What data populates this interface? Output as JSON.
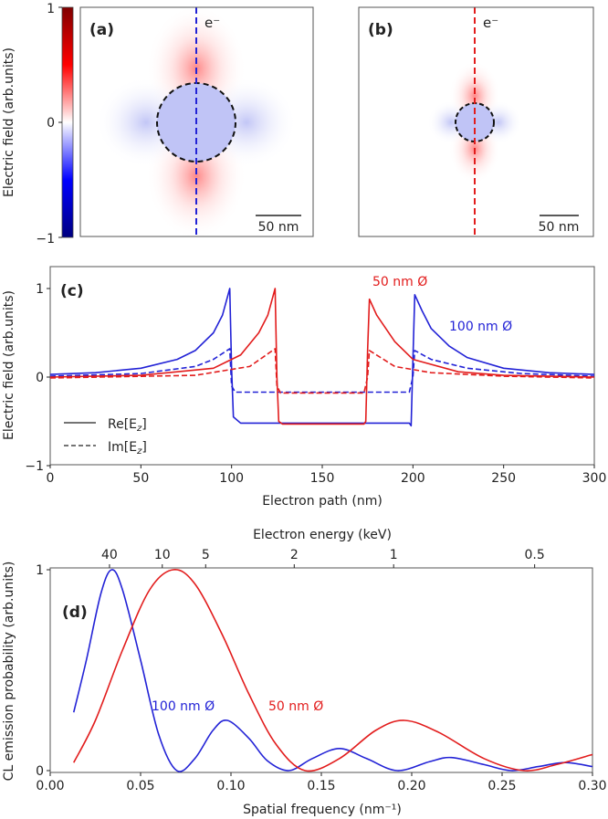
{
  "colors": {
    "blue": "#2222d6",
    "red": "#e21c1c"
  },
  "colorbar": {
    "label": "Electric field (arb.units)",
    "ticks": [
      "1",
      "0",
      "−1"
    ],
    "range": [
      -1,
      1
    ]
  },
  "panel_a": {
    "label": "(a)",
    "electron": "e⁻",
    "scale_bar": "50 nm",
    "diameter_nm": 100
  },
  "panel_b": {
    "label": "(b)",
    "electron": "e⁻",
    "scale_bar": "50 nm",
    "diameter_nm": 50
  },
  "chart_data": [
    {
      "type": "line",
      "panel": "(c)",
      "xlabel": "Electron path (nm)",
      "ylabel": "Electric field (arb.units)",
      "xlim": [
        0,
        300
      ],
      "ylim": [
        -1,
        1.2
      ],
      "xticks": [
        "0",
        "50",
        "100",
        "150",
        "200",
        "250",
        "300"
      ],
      "yticks": [
        "1",
        "0",
        "−1"
      ],
      "legend": [
        {
          "label": "Re[E",
          "sub": "z",
          "end": "]",
          "style": "solid"
        },
        {
          "label": "Im[E",
          "sub": "z",
          "end": "]",
          "style": "dashed"
        }
      ],
      "annotations": [
        "50 nm Ø",
        "100 nm Ø"
      ],
      "series": [
        {
          "name": "100 nm Re",
          "color": "blue",
          "style": "solid",
          "points": [
            [
              0,
              0.03
            ],
            [
              25,
              0.05
            ],
            [
              50,
              0.1
            ],
            [
              70,
              0.2
            ],
            [
              80,
              0.3
            ],
            [
              90,
              0.5
            ],
            [
              95,
              0.7
            ],
            [
              99,
              1.0
            ],
            [
              100,
              0.1
            ],
            [
              101,
              -0.45
            ],
            [
              105,
              -0.52
            ],
            [
              198,
              -0.52
            ],
            [
              199,
              -0.55
            ],
            [
              200,
              0.2
            ],
            [
              201,
              0.93
            ],
            [
              205,
              0.75
            ],
            [
              210,
              0.55
            ],
            [
              220,
              0.35
            ],
            [
              230,
              0.22
            ],
            [
              250,
              0.1
            ],
            [
              275,
              0.05
            ],
            [
              300,
              0.03
            ]
          ]
        },
        {
          "name": "100 nm Im",
          "color": "blue",
          "style": "dashed",
          "points": [
            [
              0,
              0.01
            ],
            [
              50,
              0.04
            ],
            [
              80,
              0.12
            ],
            [
              90,
              0.2
            ],
            [
              99,
              0.32
            ],
            [
              100,
              -0.1
            ],
            [
              102,
              -0.17
            ],
            [
              198,
              -0.17
            ],
            [
              200,
              0.0
            ],
            [
              201,
              0.3
            ],
            [
              210,
              0.2
            ],
            [
              230,
              0.1
            ],
            [
              260,
              0.04
            ],
            [
              300,
              0.01
            ]
          ]
        },
        {
          "name": "50 nm Re",
          "color": "red",
          "style": "solid",
          "points": [
            [
              0,
              0.0
            ],
            [
              50,
              0.02
            ],
            [
              90,
              0.1
            ],
            [
              105,
              0.25
            ],
            [
              115,
              0.5
            ],
            [
              120,
              0.7
            ],
            [
              124,
              1.0
            ],
            [
              125,
              0.0
            ],
            [
              126,
              -0.5
            ],
            [
              128,
              -0.53
            ],
            [
              173,
              -0.53
            ],
            [
              174,
              -0.5
            ],
            [
              175,
              0.3
            ],
            [
              176,
              0.88
            ],
            [
              180,
              0.7
            ],
            [
              190,
              0.4
            ],
            [
              200,
              0.2
            ],
            [
              225,
              0.06
            ],
            [
              250,
              0.02
            ],
            [
              300,
              0.0
            ]
          ]
        },
        {
          "name": "50 nm Im",
          "color": "red",
          "style": "dashed",
          "points": [
            [
              0,
              -0.01
            ],
            [
              80,
              0.02
            ],
            [
              110,
              0.12
            ],
            [
              124,
              0.32
            ],
            [
              125,
              -0.1
            ],
            [
              127,
              -0.18
            ],
            [
              173,
              -0.18
            ],
            [
              175,
              0.0
            ],
            [
              176,
              0.3
            ],
            [
              190,
              0.12
            ],
            [
              210,
              0.05
            ],
            [
              250,
              0.01
            ],
            [
              300,
              -0.01
            ]
          ]
        }
      ]
    },
    {
      "type": "line",
      "panel": "(d)",
      "xlabel": "Spatial frequency (nm⁻¹)",
      "ylabel": "CL emission probability (arb.units)",
      "top_xlabel": "Electron energy (keV)",
      "top_xticks": [
        {
          "label": "40",
          "x": 0.0328
        },
        {
          "label": "10",
          "x": 0.062
        },
        {
          "label": "5",
          "x": 0.086
        },
        {
          "label": "2",
          "x": 0.135
        },
        {
          "label": "1",
          "x": 0.19
        },
        {
          "label": "0.5",
          "x": 0.268
        }
      ],
      "xlim": [
        0,
        0.3
      ],
      "ylim": [
        0,
        1
      ],
      "xticks": [
        "0.00",
        "0.05",
        "0.10",
        "0.15",
        "0.20",
        "0.25",
        "0.30"
      ],
      "yticks": [
        "1",
        "0"
      ],
      "annotations": [
        "100 nm Ø",
        "50 nm Ø"
      ],
      "series": [
        {
          "name": "100 nm",
          "color": "blue",
          "style": "solid",
          "points": [
            [
              0.013,
              0.29
            ],
            [
              0.02,
              0.55
            ],
            [
              0.028,
              0.88
            ],
            [
              0.034,
              1.0
            ],
            [
              0.04,
              0.9
            ],
            [
              0.05,
              0.55
            ],
            [
              0.06,
              0.18
            ],
            [
              0.07,
              0.0
            ],
            [
              0.08,
              0.06
            ],
            [
              0.09,
              0.2
            ],
            [
              0.098,
              0.25
            ],
            [
              0.11,
              0.16
            ],
            [
              0.12,
              0.05
            ],
            [
              0.132,
              0.0
            ],
            [
              0.145,
              0.06
            ],
            [
              0.16,
              0.11
            ],
            [
              0.175,
              0.06
            ],
            [
              0.192,
              0.0
            ],
            [
              0.21,
              0.045
            ],
            [
              0.222,
              0.065
            ],
            [
              0.24,
              0.03
            ],
            [
              0.255,
              0.0
            ],
            [
              0.27,
              0.02
            ],
            [
              0.285,
              0.04
            ],
            [
              0.3,
              0.02
            ]
          ]
        },
        {
          "name": "50 nm",
          "color": "red",
          "style": "solid",
          "points": [
            [
              0.013,
              0.04
            ],
            [
              0.025,
              0.25
            ],
            [
              0.04,
              0.6
            ],
            [
              0.055,
              0.9
            ],
            [
              0.068,
              1.0
            ],
            [
              0.08,
              0.93
            ],
            [
              0.095,
              0.68
            ],
            [
              0.11,
              0.38
            ],
            [
              0.125,
              0.13
            ],
            [
              0.141,
              0.0
            ],
            [
              0.16,
              0.06
            ],
            [
              0.18,
              0.2
            ],
            [
              0.196,
              0.25
            ],
            [
              0.215,
              0.19
            ],
            [
              0.24,
              0.06
            ],
            [
              0.262,
              0.0
            ],
            [
              0.28,
              0.03
            ],
            [
              0.3,
              0.08
            ]
          ]
        }
      ]
    }
  ]
}
